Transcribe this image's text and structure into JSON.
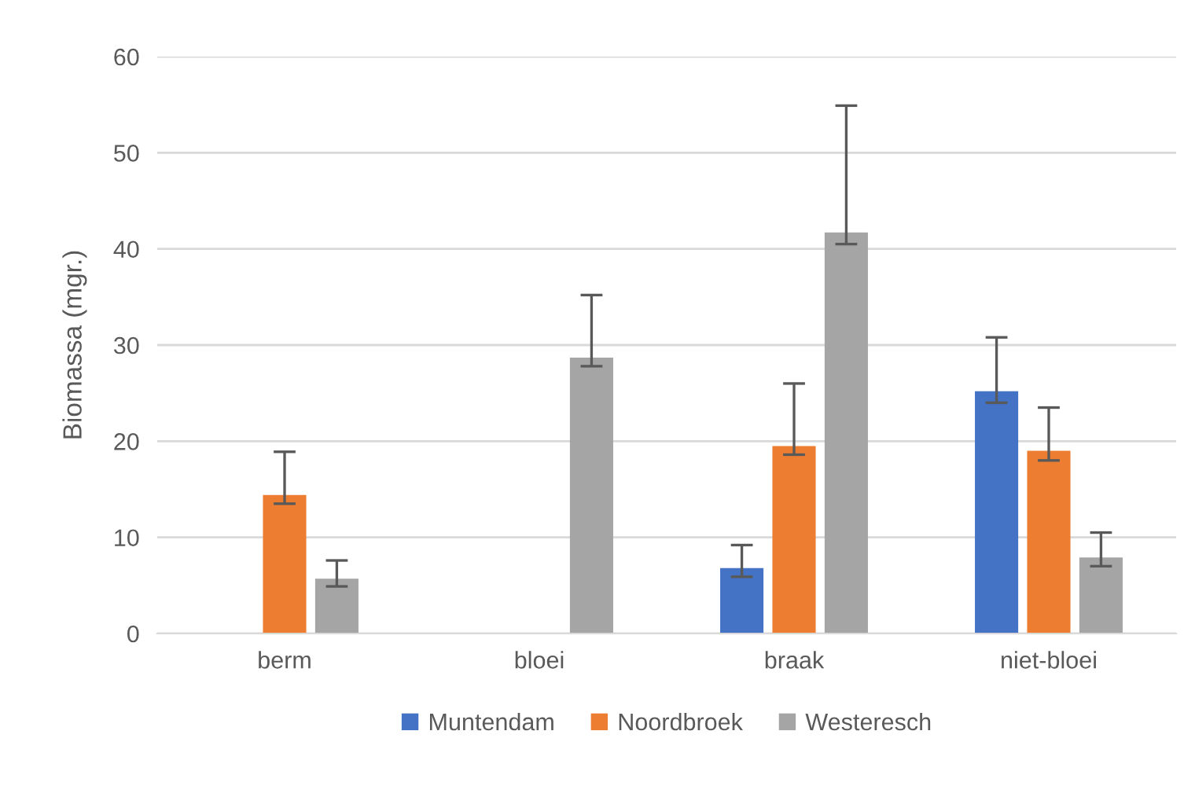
{
  "chart_data": {
    "type": "bar",
    "ylabel": "Biomassa (mgr.)",
    "categories": [
      "berm",
      "bloei",
      "braak",
      "niet-bloei"
    ],
    "series": [
      {
        "name": "Muntendam",
        "color": "#4472c4",
        "values": [
          null,
          null,
          6.8,
          25.2
        ],
        "errors": [
          null,
          null,
          [
            5.9,
            9.2
          ],
          [
            24.0,
            30.8
          ]
        ]
      },
      {
        "name": "Noordbroek",
        "color": "#ed7d31",
        "values": [
          14.4,
          null,
          19.5,
          19.0
        ],
        "errors": [
          [
            13.5,
            18.9
          ],
          null,
          [
            18.6,
            26.0
          ],
          [
            18.0,
            23.5
          ]
        ]
      },
      {
        "name": "Westeresch",
        "color": "#a5a5a5",
        "values": [
          5.7,
          28.7,
          41.7,
          7.9
        ],
        "errors": [
          [
            4.9,
            7.6
          ],
          [
            27.8,
            35.2
          ],
          [
            40.5,
            54.9
          ],
          [
            7.0,
            10.5
          ]
        ]
      }
    ],
    "ylim": [
      0,
      60
    ],
    "yticks": [
      0,
      10,
      20,
      30,
      40,
      50,
      60
    ],
    "grid": "y",
    "legend": "bottom"
  }
}
